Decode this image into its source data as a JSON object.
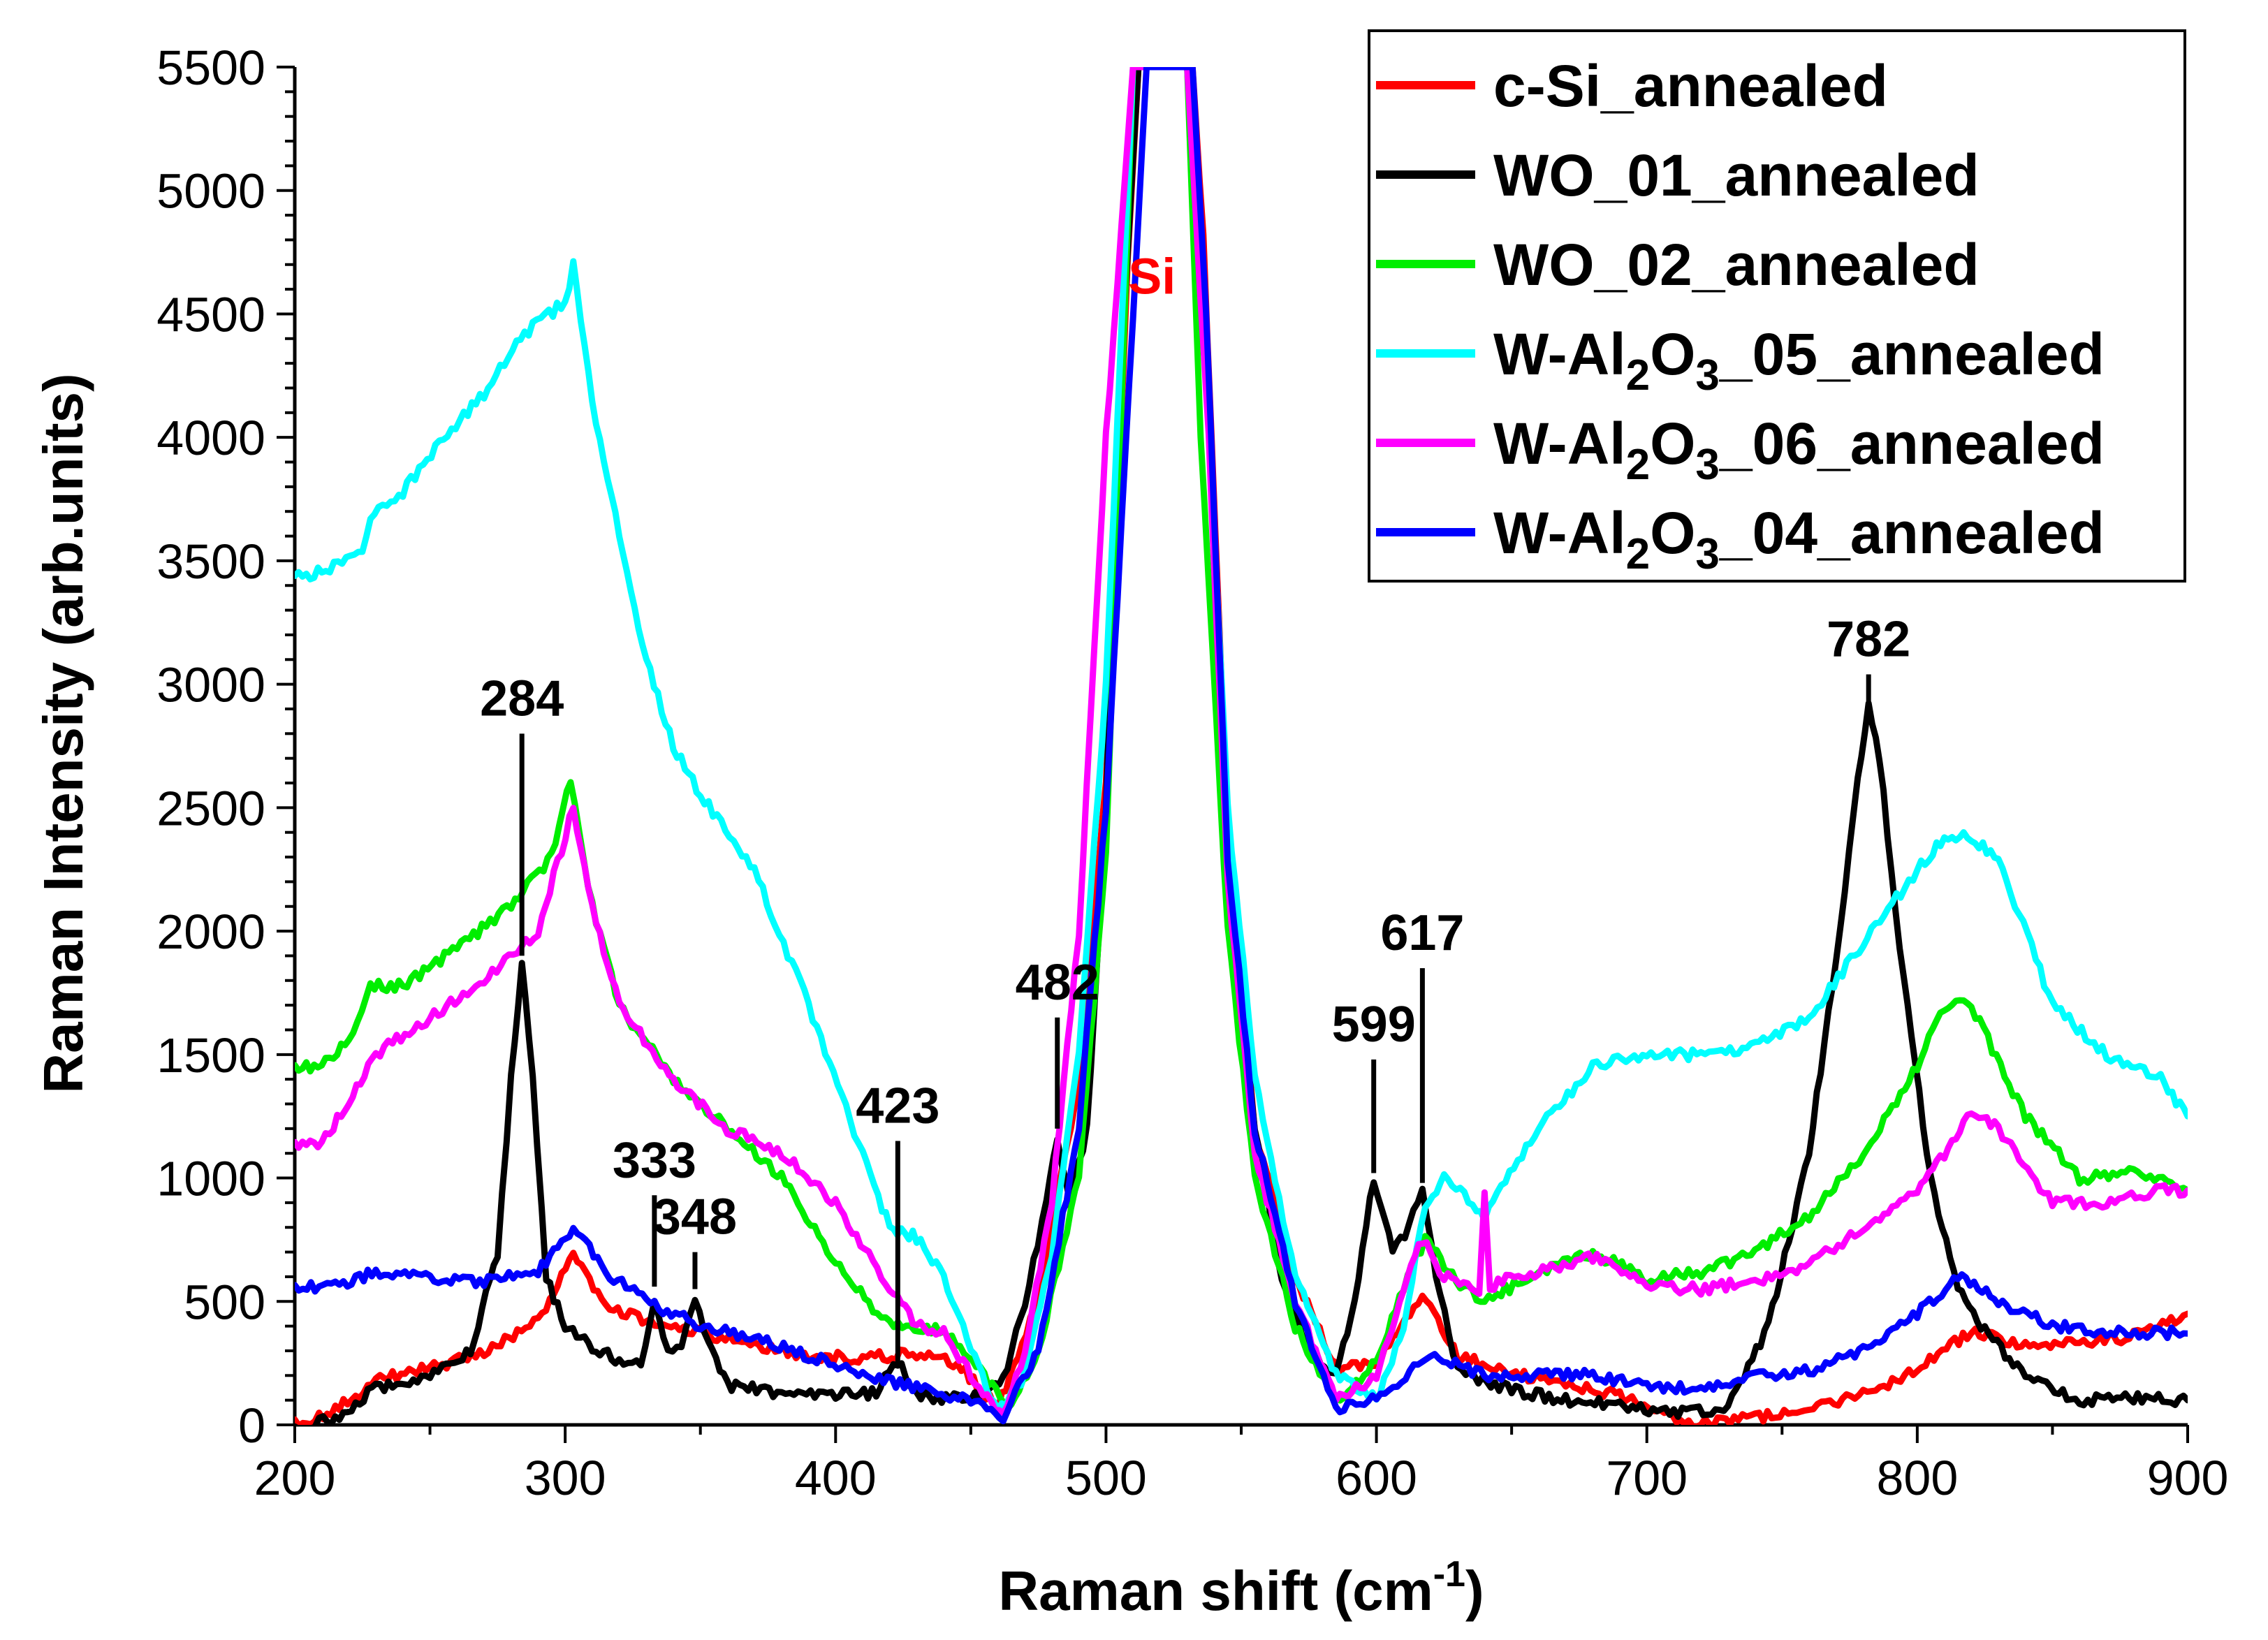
{
  "chart_data": {
    "type": "line",
    "xlabel_main": "Raman shift (cm",
    "xlabel_sup": "-1",
    "xlabel_end": ")",
    "ylabel": "Raman Intensity (arb.units)",
    "xlim": [
      200,
      900
    ],
    "ylim": [
      0,
      5500
    ],
    "xticks": [
      "200",
      "300",
      "400",
      "500",
      "600",
      "700",
      "800",
      "900"
    ],
    "yticks": [
      "0",
      "500",
      "1000",
      "1500",
      "2000",
      "2500",
      "3000",
      "3500",
      "4000",
      "4500",
      "5000",
      "5500"
    ],
    "annotation_si": {
      "text": "Si",
      "x": 517,
      "y": 4650,
      "color": "#ff0000"
    },
    "peaks": [
      {
        "label": "284",
        "x": 284,
        "top": 2800,
        "bottom": 1900
      },
      {
        "label": "333",
        "x": 333,
        "top": 930,
        "bottom": 560
      },
      {
        "label": "348",
        "x": 348,
        "top": 700,
        "bottom": 550
      },
      {
        "label": "423",
        "x": 423,
        "top": 1150,
        "bottom": 250
      },
      {
        "label": "482",
        "x": 482,
        "top": 1650,
        "bottom": 1200
      },
      {
        "label": "599",
        "x": 599,
        "top": 1480,
        "bottom": 1020
      },
      {
        "label": "617",
        "x": 617,
        "top": 1850,
        "bottom": 980
      },
      {
        "label": "782",
        "x": 782,
        "top": 3040,
        "bottom": 2930
      }
    ],
    "series": [
      {
        "name": "c-Si_annealed",
        "color": "#ff0000",
        "x": [
          200,
          215,
          230,
          250,
          270,
          290,
          303,
          315,
          330,
          350,
          370,
          390,
          410,
          430,
          445,
          460,
          475,
          490,
          500,
          508,
          512,
          532,
          536,
          545,
          555,
          570,
          585,
          600,
          617,
          630,
          650,
          670,
          690,
          705,
          720,
          740,
          760,
          780,
          800,
          820,
          840,
          860,
          880,
          900
        ],
        "y": [
          0,
          60,
          180,
          230,
          290,
          420,
          700,
          480,
          420,
          370,
          320,
          280,
          270,
          290,
          250,
          70,
          500,
          1400,
          2600,
          4700,
          5500,
          5500,
          4800,
          2400,
          1200,
          600,
          230,
          250,
          520,
          280,
          210,
          170,
          120,
          40,
          10,
          30,
          60,
          120,
          230,
          380,
          320,
          330,
          360,
          450
        ]
      },
      {
        "name": "WO_01_annealed",
        "color": "#000000",
        "x": [
          200,
          215,
          230,
          250,
          265,
          275,
          280,
          284,
          288,
          293,
          300,
          310,
          320,
          328,
          333,
          338,
          343,
          348,
          353,
          360,
          380,
          400,
          415,
          423,
          430,
          450,
          462,
          470,
          478,
          482,
          487,
          493,
          500,
          505,
          512,
          530,
          536,
          545,
          555,
          565,
          575,
          585,
          592,
          599,
          606,
          612,
          617,
          622,
          630,
          650,
          670,
          690,
          710,
          730,
          745,
          760,
          770,
          778,
          782,
          786,
          795,
          805,
          815,
          825,
          840,
          860,
          880,
          900
        ],
        "y": [
          0,
          20,
          150,
          200,
          300,
          700,
          1400,
          1880,
          1400,
          600,
          390,
          320,
          260,
          250,
          520,
          290,
          310,
          500,
          330,
          160,
          130,
          120,
          130,
          260,
          120,
          100,
          180,
          500,
          900,
          1150,
          900,
          1200,
          2500,
          4200,
          5500,
          5500,
          4500,
          2400,
          1200,
          600,
          300,
          200,
          500,
          1000,
          700,
          800,
          950,
          600,
          220,
          140,
          100,
          80,
          50,
          70,
          400,
          1100,
          1900,
          2600,
          2900,
          2700,
          1800,
          1000,
          550,
          380,
          200,
          100,
          110,
          100
        ]
      },
      {
        "name": "WO_02_annealed",
        "color": "#00ee00",
        "x": [
          200,
          210,
          220,
          228,
          240,
          260,
          280,
          295,
          302,
          310,
          320,
          340,
          360,
          380,
          400,
          420,
          440,
          455,
          465,
          475,
          490,
          500,
          510,
          530,
          535,
          545,
          555,
          570,
          585,
          600,
          610,
          618,
          628,
          640,
          660,
          680,
          700,
          720,
          740,
          760,
          780,
          800,
          810,
          820,
          840,
          860,
          880,
          900
        ],
        "y": [
          1450,
          1450,
          1550,
          1780,
          1780,
          1930,
          2100,
          2300,
          2620,
          2100,
          1700,
          1400,
          1200,
          1000,
          650,
          400,
          380,
          200,
          60,
          300,
          1000,
          2300,
          5500,
          5500,
          4000,
          2000,
          1000,
          400,
          100,
          250,
          550,
          750,
          600,
          500,
          620,
          700,
          590,
          620,
          700,
          850,
          1100,
          1450,
          1700,
          1700,
          1250,
          1000,
          1020,
          950
        ]
      },
      {
        "name": "W-Al2O3_05_annealed",
        "color": "#00ffff",
        "x": [
          200,
          210,
          225,
          228,
          240,
          255,
          270,
          285,
          300,
          303,
          310,
          320,
          330,
          340,
          350,
          370,
          390,
          410,
          420,
          430,
          440,
          450,
          460,
          470,
          480,
          490,
          500,
          510,
          530,
          536,
          545,
          555,
          570,
          585,
          600,
          610,
          618,
          625,
          640,
          660,
          680,
          700,
          720,
          740,
          760,
          780,
          800,
          810,
          820,
          830,
          850,
          870,
          890,
          900
        ],
        "y": [
          3430,
          3460,
          3520,
          3690,
          3780,
          4000,
          4180,
          4420,
          4550,
          4700,
          4150,
          3600,
          3100,
          2750,
          2550,
          2250,
          1700,
          1100,
          800,
          760,
          600,
          300,
          50,
          200,
          700,
          1500,
          3000,
          5500,
          5500,
          4500,
          2500,
          1400,
          600,
          200,
          100,
          400,
          900,
          1000,
          850,
          1200,
          1450,
          1500,
          1500,
          1530,
          1650,
          1950,
          2250,
          2380,
          2380,
          2300,
          1700,
          1500,
          1400,
          1250
        ]
      },
      {
        "name": "W-Al2O3_06_annealed",
        "color": "#ff00ff",
        "x": [
          200,
          210,
          220,
          230,
          250,
          270,
          290,
          303,
          310,
          320,
          340,
          360,
          380,
          400,
          420,
          430,
          440,
          450,
          462,
          470,
          480,
          490,
          500,
          510,
          530,
          538,
          545,
          555,
          570,
          585,
          600,
          610,
          617,
          625,
          638,
          640,
          642,
          645,
          660,
          680,
          700,
          720,
          740,
          760,
          780,
          800,
          810,
          820,
          830,
          850,
          870,
          890,
          900
        ],
        "y": [
          1130,
          1150,
          1300,
          1500,
          1650,
          1800,
          2000,
          2500,
          2100,
          1700,
          1400,
          1200,
          1100,
          900,
          550,
          400,
          380,
          200,
          30,
          300,
          900,
          2000,
          4000,
          5500,
          5500,
          4000,
          2200,
          1100,
          500,
          100,
          200,
          550,
          750,
          600,
          550,
          920,
          550,
          580,
          620,
          680,
          560,
          550,
          580,
          650,
          800,
          950,
          1100,
          1280,
          1200,
          900,
          900,
          950,
          950
        ]
      },
      {
        "name": "W-Al2O3_04_annealed",
        "color": "#0000ff",
        "x": [
          200,
          215,
          230,
          250,
          270,
          290,
          303,
          315,
          330,
          350,
          370,
          390,
          410,
          430,
          450,
          462,
          475,
          490,
          500,
          510,
          515,
          532,
          537,
          545,
          555,
          570,
          585,
          600,
          620,
          640,
          660,
          680,
          700,
          720,
          740,
          760,
          780,
          800,
          815,
          830,
          850,
          870,
          900
        ],
        "y": [
          560,
          560,
          620,
          590,
          580,
          620,
          800,
          620,
          500,
          400,
          350,
          280,
          200,
          150,
          100,
          30,
          300,
          1200,
          2500,
          4500,
          5500,
          5500,
          4500,
          2300,
          1200,
          500,
          70,
          100,
          280,
          200,
          200,
          200,
          160,
          150,
          200,
          220,
          300,
          450,
          600,
          500,
          400,
          380,
          370
        ]
      }
    ],
    "legend": {
      "placement": "top-right",
      "entries": [
        {
          "color": "#ff0000",
          "parts": [
            {
              "t": "c-Si_annealed"
            }
          ]
        },
        {
          "color": "#000000",
          "parts": [
            {
              "t": "WO_01_annealed"
            }
          ]
        },
        {
          "color": "#00ee00",
          "parts": [
            {
              "t": "WO_02_annealed"
            }
          ]
        },
        {
          "color": "#00ffff",
          "parts": [
            {
              "t": "W-Al"
            },
            {
              "t": "2",
              "sub": true
            },
            {
              "t": "O"
            },
            {
              "t": "3",
              "sub": true
            },
            {
              "t": "_05_annealed"
            }
          ]
        },
        {
          "color": "#ff00ff",
          "parts": [
            {
              "t": "W-Al"
            },
            {
              "t": "2",
              "sub": true
            },
            {
              "t": "O"
            },
            {
              "t": "3",
              "sub": true
            },
            {
              "t": "_06_annealed"
            }
          ]
        },
        {
          "color": "#0000ff",
          "parts": [
            {
              "t": "W-Al"
            },
            {
              "t": "2",
              "sub": true
            },
            {
              "t": "O"
            },
            {
              "t": "3",
              "sub": true
            },
            {
              "t": "_04_annealed"
            }
          ]
        }
      ]
    }
  }
}
